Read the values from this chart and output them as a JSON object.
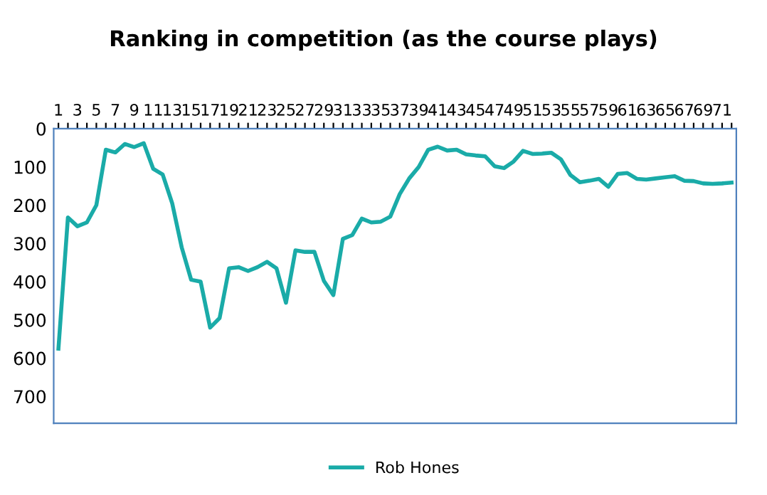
{
  "chart_data": {
    "type": "line",
    "title": "Ranking in competition (as the course plays)",
    "categories": [
      "1",
      null,
      "3",
      null,
      "5",
      null,
      "7",
      null,
      "9",
      null,
      "11",
      null,
      "13",
      null,
      "15",
      null,
      "17",
      null,
      "19",
      null,
      "21",
      null,
      "23",
      null,
      "25",
      null,
      "27",
      null,
      "29",
      null,
      "31",
      null,
      "33",
      null,
      "35",
      null,
      "37",
      null,
      "39",
      null,
      "41",
      null,
      "43",
      null,
      "45",
      null,
      "47",
      null,
      "49",
      null,
      "51",
      null,
      "53",
      null,
      "55",
      null,
      "57",
      null,
      "59",
      null,
      "61",
      null,
      "63",
      null,
      "65",
      null,
      "67",
      null,
      "69",
      null,
      "71",
      null
    ],
    "series": [
      {
        "name": "Rob Hones",
        "color": "#1aaba8",
        "values": [
          575,
          232,
          255,
          245,
          200,
          55,
          62,
          40,
          48,
          38,
          105,
          120,
          195,
          310,
          395,
          400,
          520,
          495,
          365,
          362,
          372,
          362,
          348,
          365,
          455,
          318,
          322,
          322,
          398,
          435,
          288,
          278,
          235,
          245,
          243,
          230,
          171,
          130,
          100,
          55,
          47,
          57,
          55,
          67,
          70,
          72,
          98,
          103,
          86,
          58,
          66,
          65,
          63,
          80,
          121,
          140,
          136,
          131,
          152,
          118,
          116,
          131,
          133,
          130,
          127,
          124,
          136,
          137,
          143,
          144,
          143,
          141
        ]
      }
    ],
    "ylim": [
      770,
      0
    ],
    "yticks": [
      0,
      100,
      200,
      300,
      400,
      500,
      600,
      700
    ],
    "grid": false,
    "legend": "bottom",
    "marker": "none",
    "line_style": "solid"
  }
}
